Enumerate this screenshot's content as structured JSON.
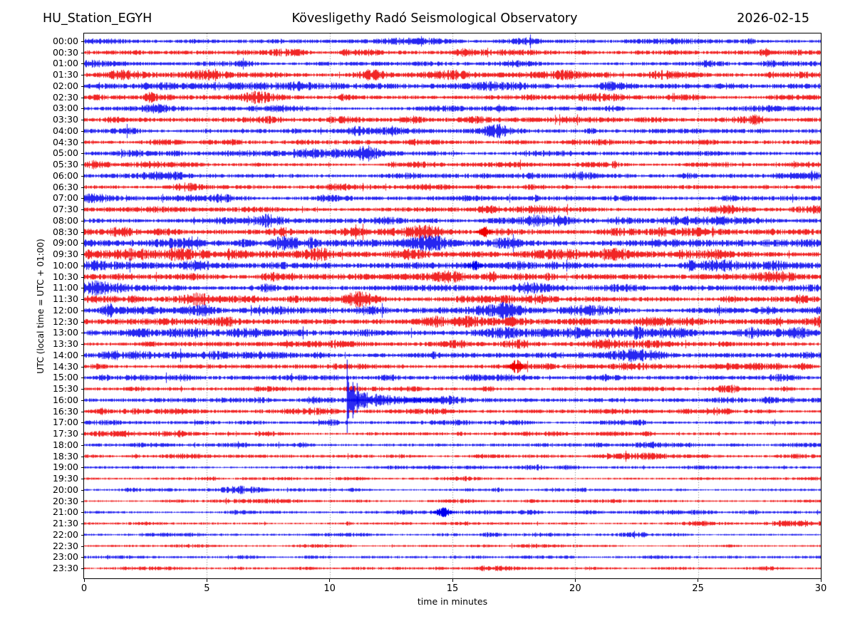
{
  "header": {
    "station": "HU_Station_EGYH",
    "observatory": "Kövesligethy Radó Seismological Observatory",
    "date": "2026-02-15"
  },
  "chart_data": {
    "type": "line",
    "subtype": "helicorder-dayplot",
    "title": "Kövesligethy Radó Seismological Observatory",
    "station": "HU_Station_EGYH",
    "date": "2026-02-15",
    "xlabel": "time in minutes",
    "ylabel": "UTC (local time = UTC + 01:00)",
    "x_range": [
      0,
      30
    ],
    "x_ticks": [
      0,
      5,
      10,
      15,
      20,
      25,
      30
    ],
    "x_gridlines_min": [
      5,
      10,
      15,
      20,
      25
    ],
    "minutes_per_row": 30,
    "grid": "dotted vertical lines at 5-minute intervals",
    "legend": "none",
    "colors": {
      "even_rows": "#0000ee",
      "odd_rows": "#ee0000",
      "grid": "#555555",
      "frame": "#000000",
      "background": "#ffffff"
    },
    "rows": [
      {
        "label": "00:00",
        "color": "blue",
        "noise_amp": 1.8
      },
      {
        "label": "00:30",
        "color": "red",
        "noise_amp": 1.8
      },
      {
        "label": "01:00",
        "color": "blue",
        "noise_amp": 1.7
      },
      {
        "label": "01:30",
        "color": "red",
        "noise_amp": 2.2
      },
      {
        "label": "02:00",
        "color": "blue",
        "noise_amp": 2.2
      },
      {
        "label": "02:30",
        "color": "red",
        "noise_amp": 2.1
      },
      {
        "label": "03:00",
        "color": "blue",
        "noise_amp": 1.8
      },
      {
        "label": "03:30",
        "color": "red",
        "noise_amp": 2.0
      },
      {
        "label": "04:00",
        "color": "blue",
        "noise_amp": 2.0
      },
      {
        "label": "04:30",
        "color": "red",
        "noise_amp": 1.8
      },
      {
        "label": "05:00",
        "color": "blue",
        "noise_amp": 1.9
      },
      {
        "label": "05:30",
        "color": "red",
        "noise_amp": 1.6
      },
      {
        "label": "06:00",
        "color": "blue",
        "noise_amp": 2.0
      },
      {
        "label": "06:30",
        "color": "red",
        "noise_amp": 1.7
      },
      {
        "label": "07:00",
        "color": "blue",
        "noise_amp": 2.0
      },
      {
        "label": "07:30",
        "color": "red",
        "noise_amp": 2.1
      },
      {
        "label": "08:00",
        "color": "blue",
        "noise_amp": 2.3
      },
      {
        "label": "08:30",
        "color": "red",
        "noise_amp": 2.6
      },
      {
        "label": "09:00",
        "color": "blue",
        "noise_amp": 3.1
      },
      {
        "label": "09:30",
        "color": "red",
        "noise_amp": 3.0
      },
      {
        "label": "10:00",
        "color": "blue",
        "noise_amp": 2.8
      },
      {
        "label": "10:30",
        "color": "red",
        "noise_amp": 2.6
      },
      {
        "label": "11:00",
        "color": "blue",
        "noise_amp": 2.4
      },
      {
        "label": "11:30",
        "color": "red",
        "noise_amp": 2.4
      },
      {
        "label": "12:00",
        "color": "blue",
        "noise_amp": 2.6
      },
      {
        "label": "12:30",
        "color": "red",
        "noise_amp": 2.8
      },
      {
        "label": "13:00",
        "color": "blue",
        "noise_amp": 2.8
      },
      {
        "label": "13:30",
        "color": "red",
        "noise_amp": 2.2
      },
      {
        "label": "14:00",
        "color": "blue",
        "noise_amp": 2.4
      },
      {
        "label": "14:30",
        "color": "red",
        "noise_amp": 2.0
      },
      {
        "label": "15:00",
        "color": "blue",
        "noise_amp": 1.8
      },
      {
        "label": "15:30",
        "color": "red",
        "noise_amp": 1.6
      },
      {
        "label": "16:00",
        "color": "blue",
        "noise_amp": 1.8
      },
      {
        "label": "16:30",
        "color": "red",
        "noise_amp": 1.5
      },
      {
        "label": "17:00",
        "color": "blue",
        "noise_amp": 1.4
      },
      {
        "label": "17:30",
        "color": "red",
        "noise_amp": 1.4
      },
      {
        "label": "18:00",
        "color": "blue",
        "noise_amp": 1.5
      },
      {
        "label": "18:30",
        "color": "red",
        "noise_amp": 1.4
      },
      {
        "label": "19:00",
        "color": "blue",
        "noise_amp": 1.2
      },
      {
        "label": "19:30",
        "color": "red",
        "noise_amp": 1.0
      },
      {
        "label": "20:00",
        "color": "blue",
        "noise_amp": 1.1
      },
      {
        "label": "20:30",
        "color": "red",
        "noise_amp": 1.0
      },
      {
        "label": "21:00",
        "color": "blue",
        "noise_amp": 1.1
      },
      {
        "label": "21:30",
        "color": "red",
        "noise_amp": 1.0
      },
      {
        "label": "22:00",
        "color": "blue",
        "noise_amp": 1.0
      },
      {
        "label": "22:30",
        "color": "red",
        "noise_amp": 0.9
      },
      {
        "label": "23:00",
        "color": "blue",
        "noise_amp": 1.1
      },
      {
        "label": "23:30",
        "color": "red",
        "noise_amp": 1.0
      }
    ],
    "events": [
      {
        "row": "08:30",
        "minute": 16.3,
        "peak_amp": 7,
        "duration_min": 0.6,
        "description": "short noise burst"
      },
      {
        "row": "10:00",
        "minute": 15.9,
        "peak_amp": 6,
        "duration_min": 0.6,
        "description": "short noise burst"
      },
      {
        "row": "14:30",
        "minute": 17.6,
        "peak_amp": 9,
        "duration_min": 0.5,
        "description": "spindle-shaped burst"
      },
      {
        "row": "16:00",
        "minute": 10.7,
        "peak_amp": 58,
        "duration_min": 3.8,
        "description": "clipped local earthquake with decaying coda, trace clipped across neighbouring rows"
      },
      {
        "row": "21:00",
        "minute": 14.6,
        "peak_amp": 6,
        "duration_min": 0.8,
        "description": "small burst"
      }
    ]
  }
}
